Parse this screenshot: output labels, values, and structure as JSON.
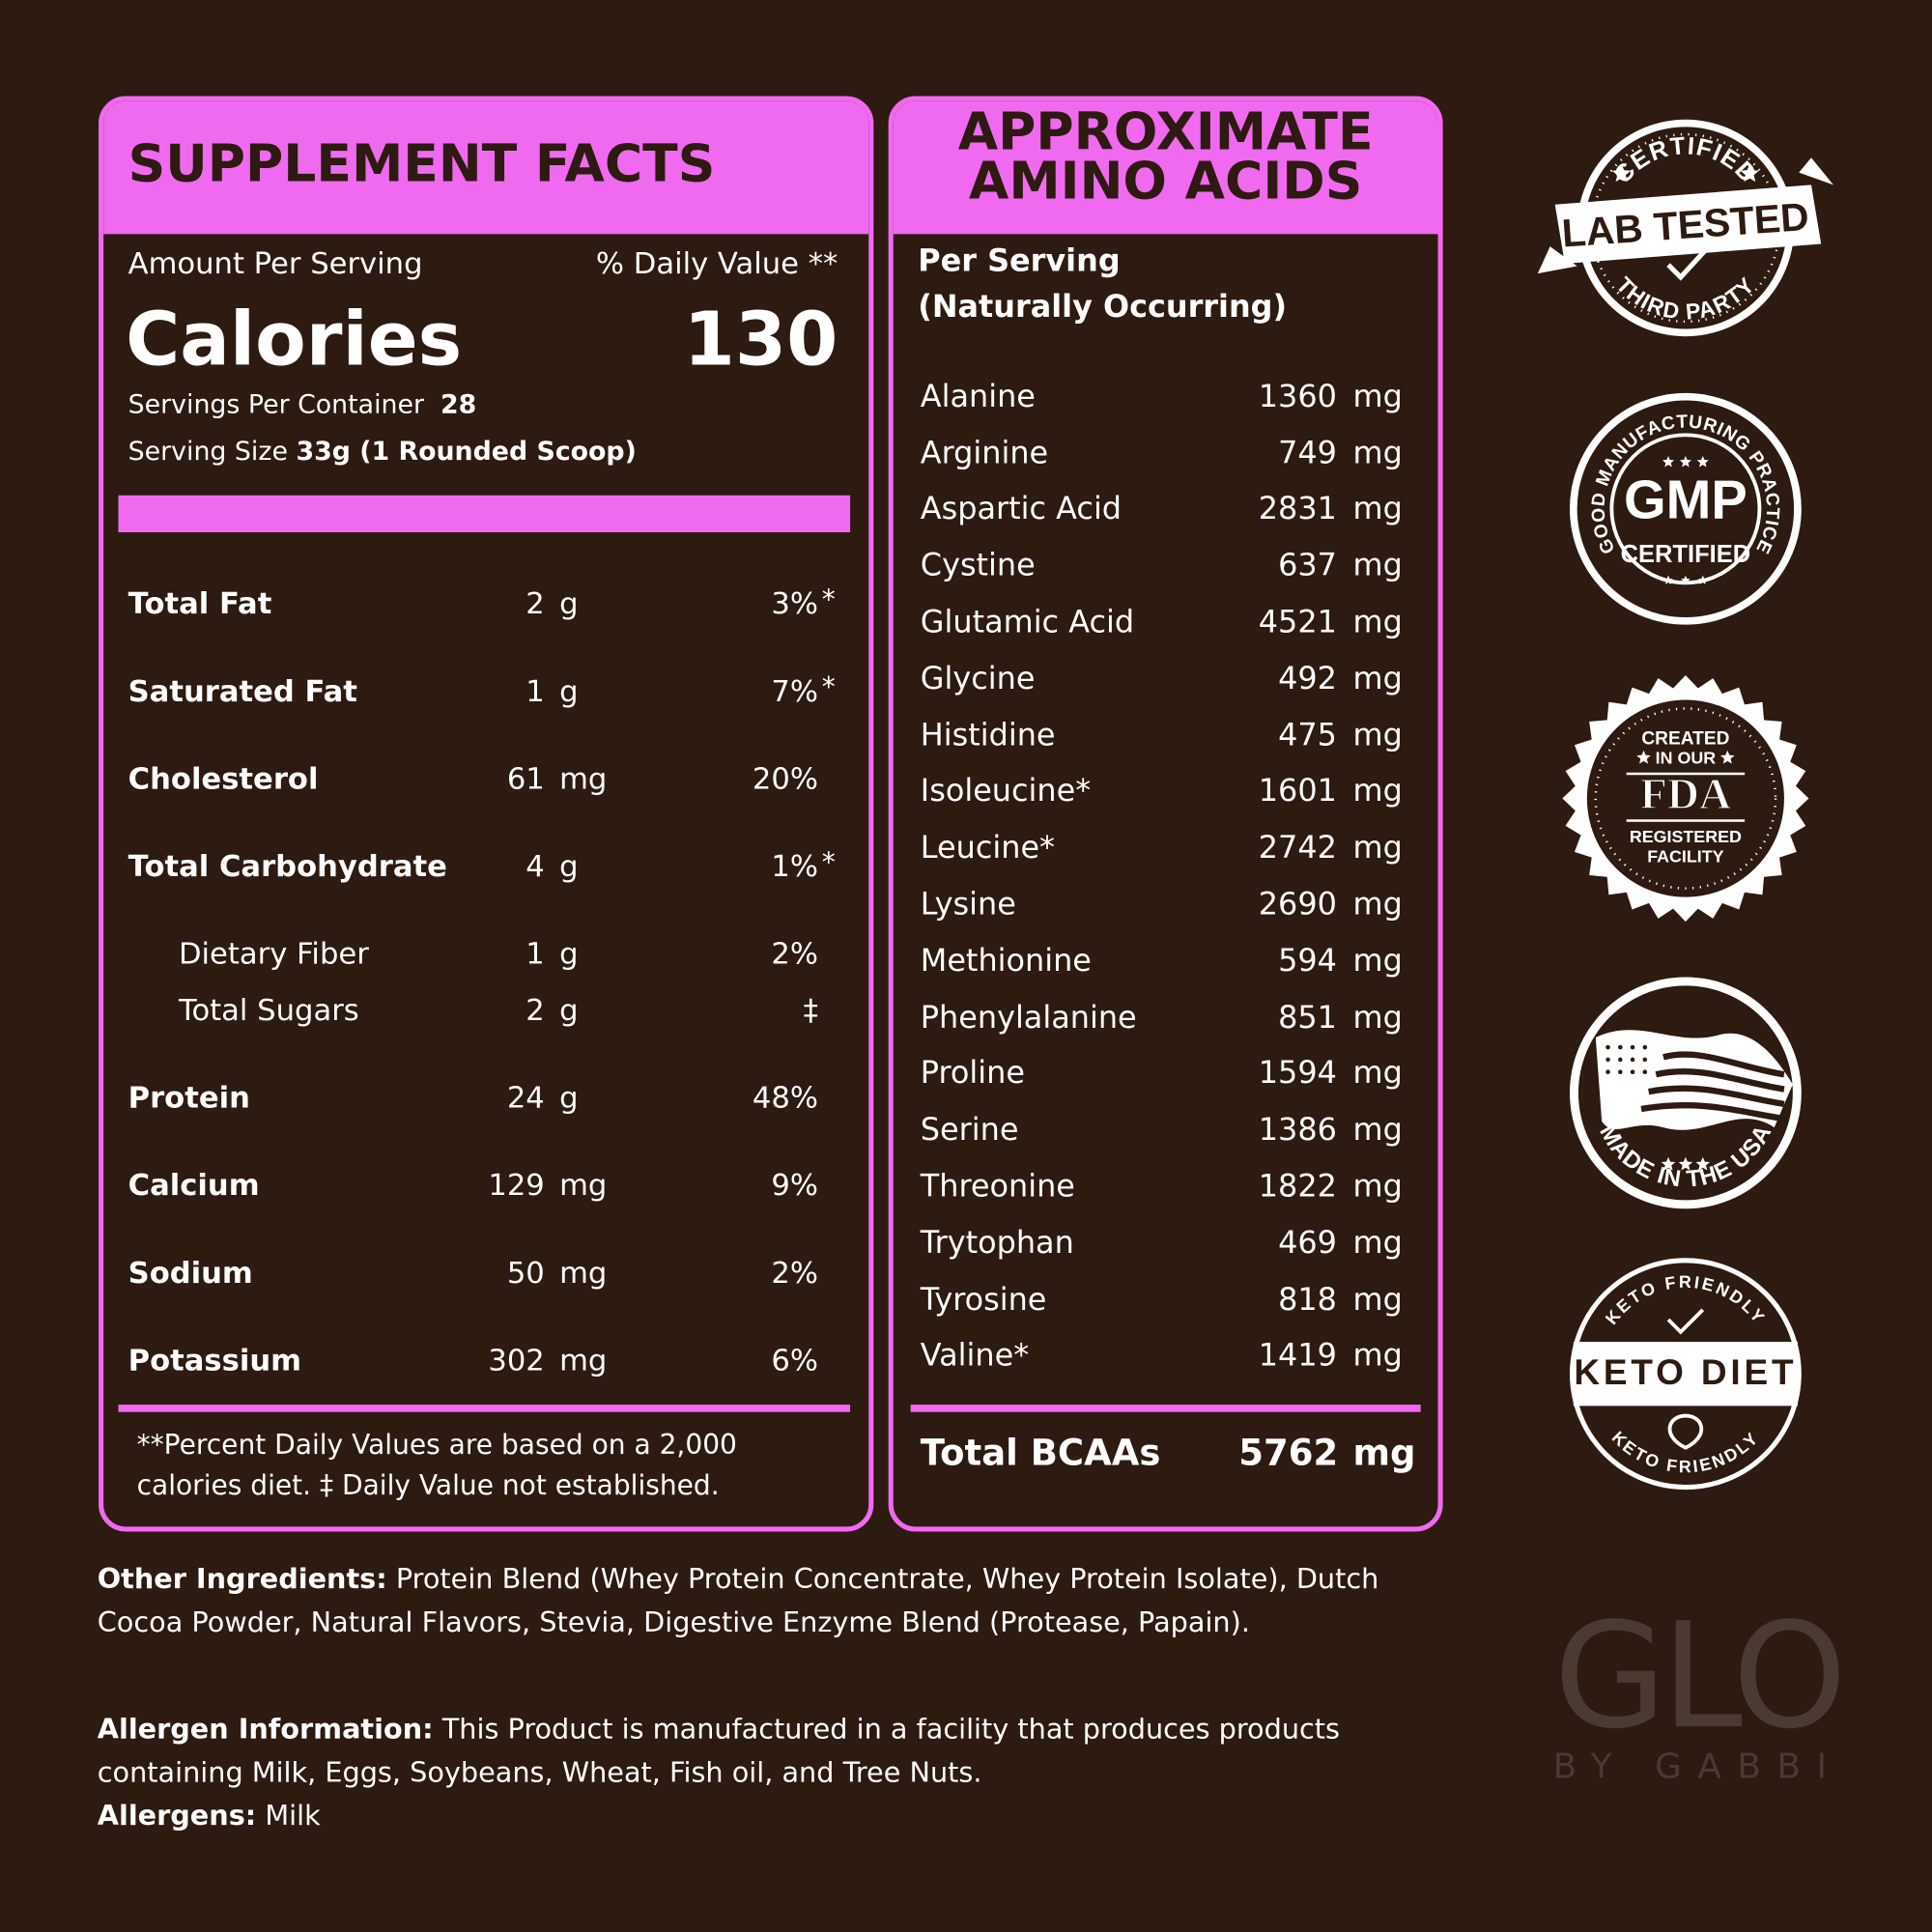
{
  "supplement_facts": {
    "title": "SUPPLEMENT FACTS",
    "amount_per_serving": "Amount Per Serving",
    "daily_value_header": "% Daily Value **",
    "calories_label": "Calories",
    "calories": 130,
    "servings_per_container_label": "Servings Per Container",
    "servings_per_container": 28,
    "serving_size_label": "Serving Size",
    "serving_size": "33g (1 Rounded Scoop)",
    "rows": [
      {
        "label": "Total Fat",
        "amount": 2,
        "unit": "g",
        "daily_value": "3%",
        "mark": "*"
      },
      {
        "label": "Saturated Fat",
        "amount": 1,
        "unit": "g",
        "daily_value": "7%",
        "mark": "*"
      },
      {
        "label": "Cholesterol",
        "amount": 61,
        "unit": "mg",
        "daily_value": "20%"
      },
      {
        "label": "Total Carbohydrate",
        "amount": 4,
        "unit": "g",
        "daily_value": "1%",
        "mark": "*",
        "subrows": [
          {
            "label": "Dietary Fiber",
            "amount": 1,
            "unit": "g",
            "daily_value": "2%"
          },
          {
            "label": "Total Sugars",
            "amount": 2,
            "unit": "g",
            "daily_value": "‡"
          }
        ]
      },
      {
        "label": "Protein",
        "amount": 24,
        "unit": "g",
        "daily_value": "48%"
      },
      {
        "label": "Calcium",
        "amount": 129,
        "unit": "mg",
        "daily_value": "9%"
      },
      {
        "label": "Sodium",
        "amount": 50,
        "unit": "mg",
        "daily_value": "2%"
      },
      {
        "label": "Potassium",
        "amount": 302,
        "unit": "mg",
        "daily_value": "6%"
      }
    ],
    "footnote": "**Percent Daily Values are based on a 2,000 calories diet. ‡ Daily Value not established."
  },
  "amino_acids": {
    "title_lines": [
      "APPROXIMATE",
      "AMINO ACIDS"
    ],
    "subtitle_lines": [
      "Per Serving",
      "(Naturally Occurring)"
    ],
    "rows": [
      {
        "name": "Alanine",
        "amount": 1360,
        "unit": "mg"
      },
      {
        "name": "Arginine",
        "amount": 749,
        "unit": "mg"
      },
      {
        "name": "Aspartic Acid",
        "amount": 2831,
        "unit": "mg"
      },
      {
        "name": "Cystine",
        "amount": 637,
        "unit": "mg"
      },
      {
        "name": "Glutamic Acid",
        "amount": 4521,
        "unit": "mg"
      },
      {
        "name": "Glycine",
        "amount": 492,
        "unit": "mg"
      },
      {
        "name": "Histidine",
        "amount": 475,
        "unit": "mg"
      },
      {
        "name": "Isoleucine*",
        "amount": 1601,
        "unit": "mg"
      },
      {
        "name": "Leucine*",
        "amount": 2742,
        "unit": "mg"
      },
      {
        "name": "Lysine",
        "amount": 2690,
        "unit": "mg"
      },
      {
        "name": "Methionine",
        "amount": 594,
        "unit": "mg"
      },
      {
        "name": "Phenylalanine",
        "amount": 851,
        "unit": "mg"
      },
      {
        "name": "Proline",
        "amount": 1594,
        "unit": "mg"
      },
      {
        "name": "Serine",
        "amount": 1386,
        "unit": "mg"
      },
      {
        "name": "Threonine",
        "amount": 1822,
        "unit": "mg"
      },
      {
        "name": "Trytophan",
        "amount": 469,
        "unit": "mg"
      },
      {
        "name": "Tyrosine",
        "amount": 818,
        "unit": "mg"
      },
      {
        "name": "Valine*",
        "amount": 1419,
        "unit": "mg"
      }
    ],
    "total": {
      "label": "Total BCAAs",
      "amount": 5762,
      "unit": "mg"
    }
  },
  "ingredients": {
    "other_label": "Other Ingredients:",
    "other_text": "Protein Blend (Whey Protein Concentrate, Whey Protein Isolate), Dutch Cocoa Powder, Natural Flavors, Stevia, Digestive Enzyme Blend (Protease, Papain).",
    "allergen_label": "Allergen Information:",
    "allergen_text": "This Product is manufactured in a facility that produces products containing Milk, Eggs, Soybeans, Wheat, Fish oil, and Tree Nuts.",
    "allergens_label": "Allergens:",
    "allergens": "Milk"
  },
  "badges": {
    "lab_tested": {
      "top": "CERTIFIED",
      "main": "LAB TESTED",
      "bottom": "THIRD PARTY"
    },
    "gmp": {
      "top": "GOOD MANUFACTURING PRACTICE",
      "main": "GMP",
      "bottom": "CERTIFIED"
    },
    "fda": {
      "line1": "CREATED",
      "line2": "IN OUR",
      "main": "FDA",
      "line3": "REGISTERED",
      "line4": "FACILITY"
    },
    "usa": {
      "bottom": "MADE IN THE USA"
    },
    "keto": {
      "top": "KETO FRIENDLY",
      "main": "KETO DIET",
      "bottom": "KETO FRIENDLY"
    }
  },
  "logo": {
    "main": "GLO",
    "sub": "BY GABBI"
  }
}
